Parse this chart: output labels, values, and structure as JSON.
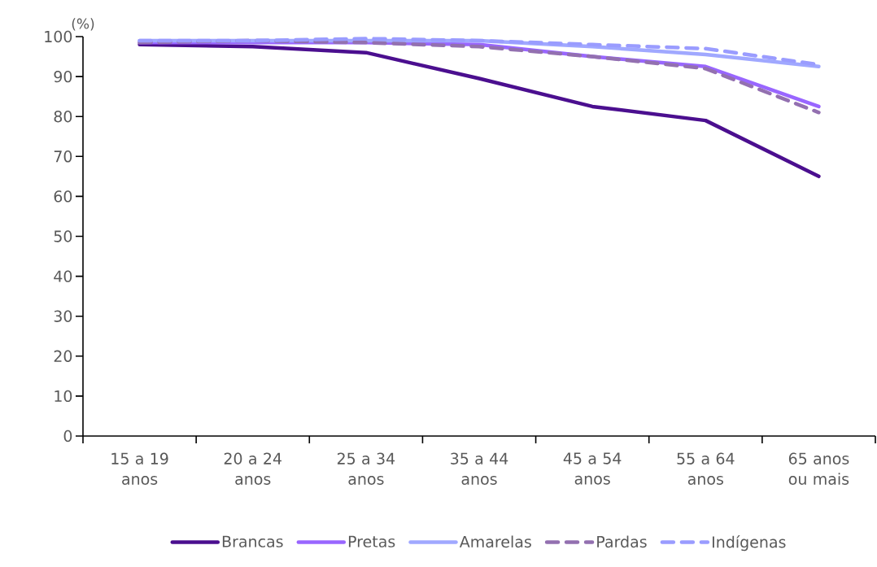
{
  "chart_data": {
    "type": "line",
    "ylabel": "(%)",
    "categories": [
      "15 a 19 anos",
      "20 a 24 anos",
      "25 a 34 anos",
      "35 a 44 anos",
      "45 a 54 anos",
      "55 a 64 anos",
      "65 anos ou mais"
    ],
    "series": [
      {
        "name": "Brancas",
        "color": "#4b0f8f",
        "line_style": "solid",
        "values": [
          98,
          97.5,
          96,
          89.5,
          82.5,
          79,
          65
        ]
      },
      {
        "name": "Pretas",
        "color": "#9966ff",
        "line_style": "solid",
        "values": [
          98.5,
          98.5,
          98.5,
          98,
          95,
          92.5,
          82.5
        ]
      },
      {
        "name": "Amarelas",
        "color": "#a0a8ff",
        "line_style": "solid",
        "values": [
          99,
          99,
          99,
          99,
          97.5,
          95.5,
          92.5
        ]
      },
      {
        "name": "Pardas",
        "color": "#9370b0",
        "line_style": "dashed",
        "values": [
          98.5,
          99,
          98.5,
          97.5,
          95,
          92,
          81
        ]
      },
      {
        "name": "Indígenas",
        "color": "#9a9cff",
        "line_style": "dashed",
        "values": [
          99,
          99,
          99.5,
          99,
          98,
          97,
          93
        ]
      }
    ],
    "ylim": [
      0,
      100
    ],
    "yticks": [
      0,
      10,
      20,
      30,
      40,
      50,
      60,
      70,
      80,
      90,
      100
    ],
    "legend": "bottom"
  }
}
